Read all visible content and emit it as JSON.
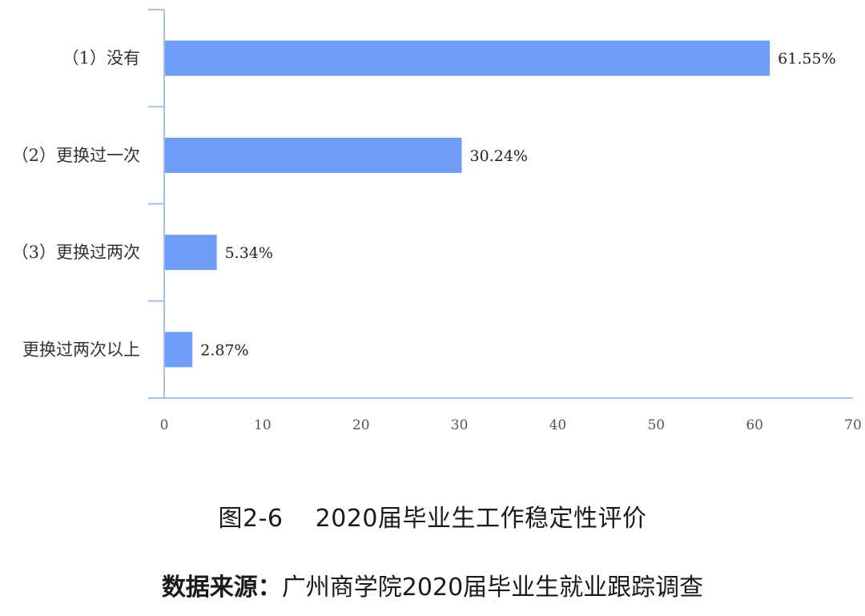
{
  "chart_data": {
    "type": "bar",
    "orientation": "horizontal",
    "categories": [
      "（1）没有",
      "（2）更换过一次",
      "（3）更换过两次",
      "更换过两次以上"
    ],
    "values": [
      61.55,
      30.24,
      5.34,
      2.87
    ],
    "value_labels": [
      "61.55%",
      "30.24%",
      "5.34%",
      "2.87%"
    ],
    "xlim": [
      0,
      70
    ],
    "xticks": [
      0,
      10,
      20,
      30,
      40,
      50,
      60,
      70
    ],
    "grid": false,
    "legend": "none",
    "bar_color": "#6f9cf4"
  },
  "caption": {
    "figure_label": "图2-6",
    "title": "2020届毕业生工作稳定性评价",
    "source_label": "数据来源：",
    "source_text": "广州商学院2020届毕业生就业跟踪调查"
  }
}
